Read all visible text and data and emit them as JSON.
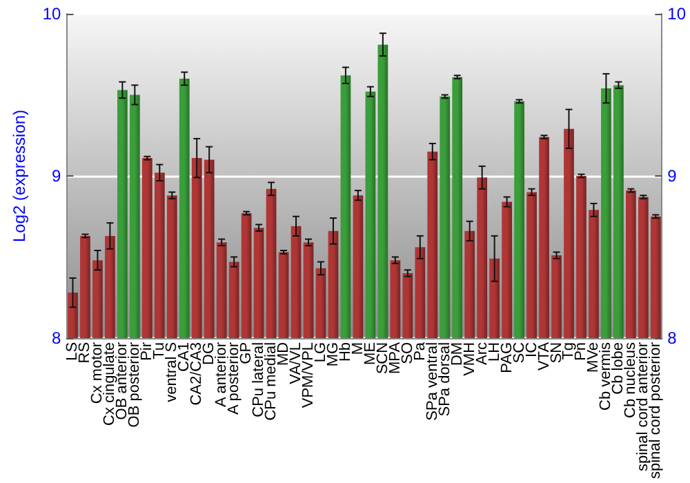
{
  "chart_data": {
    "type": "bar",
    "ylabel": "Log2 (expression)",
    "categories": [
      "LS",
      "RS",
      "Cx motor",
      "Cx cingulate",
      "OB anterior",
      "OB posterior",
      "Pir",
      "Tu",
      "ventral S",
      "CA1",
      "CA2/CA3",
      "DG",
      "A anterior",
      "A posterior",
      "GP",
      "CPu lateral",
      "CPu medial",
      "MD",
      "VA/VL",
      "VPM/VPL",
      "LG",
      "MG",
      "Hb",
      "M",
      "ME",
      "SCN",
      "MPA",
      "SO",
      "Pa",
      "SPa ventral",
      "SPa dorsal",
      "DM",
      "VMH",
      "Arc",
      "LH",
      "PAG",
      "SC",
      "IC",
      "VTA",
      "SN",
      "Tg",
      "Pn",
      "MVe",
      "Cb vermis",
      "Cb lobe",
      "Cb nucleus",
      "spinal cord anterior",
      "spinal cord posterior"
    ],
    "values": [
      8.28,
      8.63,
      8.48,
      8.63,
      9.53,
      9.5,
      9.11,
      9.02,
      8.88,
      9.6,
      9.11,
      9.1,
      8.59,
      8.47,
      8.77,
      8.68,
      8.92,
      8.53,
      8.69,
      8.59,
      8.43,
      8.66,
      9.62,
      8.88,
      9.52,
      9.81,
      8.48,
      8.4,
      8.56,
      9.15,
      9.49,
      9.61,
      8.66,
      8.99,
      8.49,
      8.84,
      9.46,
      8.9,
      9.24,
      8.51,
      9.29,
      9,
      8.79,
      9.54,
      9.56,
      8.91,
      8.87,
      8.75
    ],
    "errors": [
      0.09,
      0.01,
      0.06,
      0.08,
      0.05,
      0.06,
      0.01,
      0.05,
      0.02,
      0.04,
      0.12,
      0.08,
      0.02,
      0.03,
      0.01,
      0.02,
      0.04,
      0.01,
      0.06,
      0.02,
      0.04,
      0.08,
      0.05,
      0.03,
      0.03,
      0.07,
      0.02,
      0.02,
      0.07,
      0.05,
      0.01,
      0.01,
      0.06,
      0.07,
      0.14,
      0.03,
      0.01,
      0.02,
      0.01,
      0.02,
      0.12,
      0.01,
      0.04,
      0.09,
      0.02,
      0.01,
      0.01,
      0.01
    ],
    "colors": [
      "#b03636",
      "#b03636",
      "#b03636",
      "#b03636",
      "#3a9e3a",
      "#3a9e3a",
      "#b03636",
      "#b03636",
      "#b03636",
      "#3a9e3a",
      "#b03636",
      "#b03636",
      "#b03636",
      "#b03636",
      "#b03636",
      "#b03636",
      "#b03636",
      "#b03636",
      "#b03636",
      "#b03636",
      "#b03636",
      "#b03636",
      "#3a9e3a",
      "#b03636",
      "#3a9e3a",
      "#3a9e3a",
      "#b03636",
      "#b03636",
      "#b03636",
      "#b03636",
      "#3a9e3a",
      "#3a9e3a",
      "#b03636",
      "#b03636",
      "#b03636",
      "#b03636",
      "#3a9e3a",
      "#b03636",
      "#b03636",
      "#b03636",
      "#b03636",
      "#b03636",
      "#b03636",
      "#3a9e3a",
      "#3a9e3a",
      "#b03636",
      "#b03636",
      "#b03636"
    ],
    "ylim": [
      8,
      10
    ],
    "yticks": [
      8,
      9,
      10
    ],
    "y2lim": [
      8,
      10
    ],
    "y2ticks": [
      8,
      9,
      10
    ],
    "grid": "y"
  }
}
